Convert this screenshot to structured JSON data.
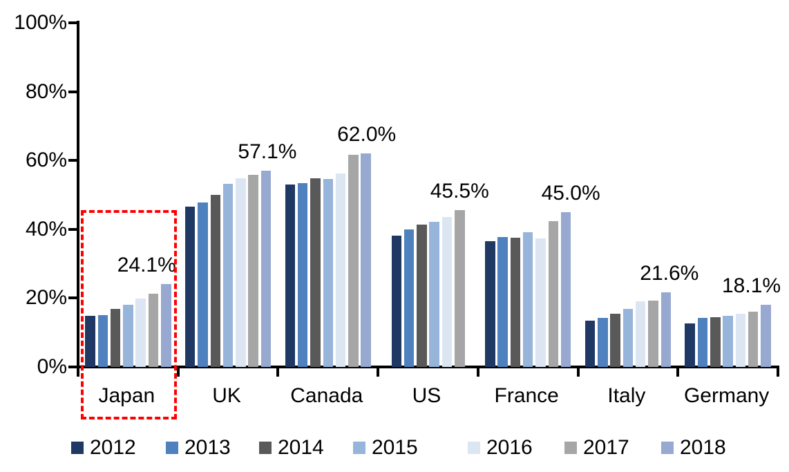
{
  "chart_data": {
    "type": "bar",
    "title": "",
    "xlabel": "",
    "ylabel": "",
    "categories": [
      "Japan",
      "UK",
      "Canada",
      "US",
      "France",
      "Italy",
      "Germany"
    ],
    "series": [
      {
        "name": "2012",
        "color": "#1F3864",
        "values": [
          14.9,
          46.5,
          53.0,
          38.2,
          36.6,
          13.4,
          12.6
        ]
      },
      {
        "name": "2013",
        "color": "#4E81BD",
        "values": [
          15.1,
          47.8,
          53.4,
          39.9,
          37.7,
          14.3,
          14.2
        ]
      },
      {
        "name": "2014",
        "color": "#595959",
        "values": [
          16.8,
          50.0,
          54.9,
          41.3,
          37.6,
          15.4,
          14.5
        ]
      },
      {
        "name": "2015",
        "color": "#97B4DB",
        "values": [
          18.1,
          53.2,
          54.6,
          42.1,
          39.2,
          16.9,
          14.8
        ]
      },
      {
        "name": "2016",
        "color": "#DCE6F2",
        "values": [
          19.8,
          54.8,
          56.2,
          43.5,
          37.4,
          19.0,
          15.4
        ]
      },
      {
        "name": "2017",
        "color": "#A6A6A6",
        "values": [
          21.2,
          55.8,
          61.7,
          45.5,
          42.4,
          19.2,
          16.0
        ]
      },
      {
        "name": "2018",
        "color": "#97A9D1",
        "values": [
          24.1,
          57.1,
          62.0,
          null,
          45.0,
          21.6,
          18.1
        ]
      }
    ],
    "annotations": [
      {
        "category": "Japan",
        "text": "24.1%"
      },
      {
        "category": "UK",
        "text": "57.1%"
      },
      {
        "category": "Canada",
        "text": "62.0%"
      },
      {
        "category": "US",
        "text": "45.5%"
      },
      {
        "category": "France",
        "text": "45.0%"
      },
      {
        "category": "Italy",
        "text": "21.6%"
      },
      {
        "category": "Germany",
        "text": "18.1%"
      }
    ],
    "y_ticks": [
      "0%",
      "20%",
      "40%",
      "60%",
      "80%",
      "100%"
    ],
    "ylim": [
      0,
      100
    ],
    "grid": false,
    "legend_position": "bottom",
    "axis_color": "#000000",
    "highlight": {
      "category": "Japan",
      "style": "dashed-box",
      "color": "#FF0000"
    }
  }
}
